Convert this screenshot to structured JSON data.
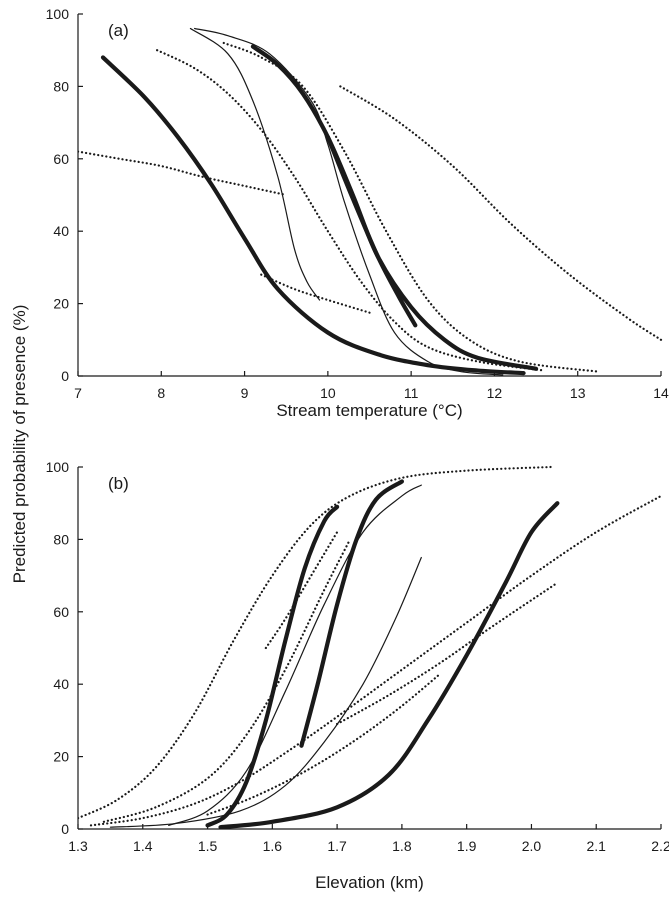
{
  "shared_ylabel": "Predicted probability of presence (%)",
  "chart_data": [
    {
      "type": "line",
      "panel_label": "(a)",
      "xlabel": "Stream temperature (°C)",
      "ylabel": "Predicted probability of presence (%)",
      "xlim": [
        7,
        14
      ],
      "ylim": [
        0,
        100
      ],
      "xticks": [
        7,
        8,
        9,
        10,
        11,
        12,
        13,
        14
      ],
      "yticks": [
        0,
        20,
        40,
        60,
        80,
        100
      ],
      "series": [
        {
          "style": "thick",
          "x": [
            7.3,
            7.8,
            8.2,
            8.6,
            9.0,
            9.4,
            10.0,
            10.6,
            11.2,
            11.8,
            12.35
          ],
          "y": [
            88,
            77,
            66,
            53,
            38,
            24,
            12,
            6,
            3,
            1.5,
            0.8
          ]
        },
        {
          "style": "thick",
          "x": [
            9.1,
            9.4,
            9.7,
            10.0,
            10.3,
            10.6,
            11.0,
            11.4,
            11.8,
            12.5
          ],
          "y": [
            91,
            86,
            78,
            66,
            50,
            33,
            19,
            10,
            5,
            2
          ]
        },
        {
          "style": "thick",
          "x": [
            10.0,
            10.3,
            10.6,
            10.85,
            11.05
          ],
          "y": [
            66,
            49,
            33,
            22,
            14
          ]
        },
        {
          "style": "thin",
          "x": [
            8.35,
            8.8,
            9.1,
            9.4,
            9.6,
            9.75,
            9.9
          ],
          "y": [
            96,
            89,
            76,
            55,
            35,
            26,
            21
          ]
        },
        {
          "style": "thin",
          "x": [
            8.4,
            8.8,
            9.3,
            9.8,
            10.0,
            10.2,
            10.5,
            10.8,
            11.2,
            11.6,
            12.1
          ],
          "y": [
            96,
            94,
            89,
            76,
            64,
            48,
            28,
            12,
            4,
            1.2,
            0.3
          ]
        },
        {
          "style": "dotted",
          "x": [
            7.0,
            7.5,
            8.0,
            8.5,
            9.0,
            9.5
          ],
          "y": [
            62,
            60,
            58,
            55,
            52.5,
            50
          ]
        },
        {
          "style": "dotted",
          "x": [
            7.95,
            8.4,
            8.8,
            9.2,
            9.6,
            10.0,
            10.4,
            10.8,
            11.2,
            11.8,
            12.6
          ],
          "y": [
            90,
            85,
            78,
            68,
            55,
            40,
            26,
            15,
            8,
            4,
            1.5
          ]
        },
        {
          "style": "dotted",
          "x": [
            8.75,
            9.2,
            9.7,
            10.2,
            10.7,
            11.2,
            11.7,
            12.3,
            13.25
          ],
          "y": [
            92,
            88,
            80,
            62,
            40,
            21,
            10,
            4,
            1.2
          ]
        },
        {
          "style": "dotted",
          "x": [
            9.2,
            9.6,
            10.0,
            10.5
          ],
          "y": [
            28,
            24,
            21,
            17.5
          ]
        },
        {
          "style": "dotted",
          "x": [
            10.15,
            10.8,
            11.5,
            12.2,
            12.9,
            13.6,
            14.0
          ],
          "y": [
            80,
            71,
            58,
            42,
            28,
            16,
            10
          ]
        }
      ]
    },
    {
      "type": "line",
      "panel_label": "(b)",
      "xlabel": "Elevation (km)",
      "ylabel": "Predicted probability of presence (%)",
      "xlim": [
        1.3,
        2.2
      ],
      "ylim": [
        0,
        100
      ],
      "xticks": [
        1.3,
        1.4,
        1.5,
        1.6,
        1.7,
        1.8,
        1.9,
        2.0,
        2.1,
        2.2
      ],
      "xtick_labels": [
        "1.3",
        "1.4",
        "1.5",
        "1.6",
        "1.7",
        "1.8",
        "1.9",
        "2.0",
        "2.1",
        "2.2"
      ],
      "yticks": [
        0,
        20,
        40,
        60,
        80,
        100
      ],
      "series": [
        {
          "style": "thick",
          "x": [
            1.5,
            1.53,
            1.56,
            1.59,
            1.62,
            1.65,
            1.68,
            1.7
          ],
          "y": [
            1,
            4,
            13,
            30,
            52,
            72,
            85,
            89
          ]
        },
        {
          "style": "thick",
          "x": [
            1.645,
            1.67,
            1.7,
            1.73,
            1.76,
            1.8
          ],
          "y": [
            23,
            40,
            62,
            80,
            91,
            96
          ]
        },
        {
          "style": "thick",
          "x": [
            1.52,
            1.6,
            1.7,
            1.78,
            1.84,
            1.9,
            1.96,
            2.0,
            2.04
          ],
          "y": [
            0.5,
            2,
            6,
            15,
            30,
            48,
            68,
            82,
            90
          ]
        },
        {
          "style": "thin",
          "x": [
            1.44,
            1.5,
            1.56,
            1.62,
            1.68,
            1.74,
            1.8,
            1.83
          ],
          "y": [
            1,
            5,
            16,
            38,
            62,
            82,
            92,
            95
          ]
        },
        {
          "style": "thin",
          "x": [
            1.35,
            1.45,
            1.55,
            1.62,
            1.68,
            1.74,
            1.79,
            1.83
          ],
          "y": [
            0.5,
            1.5,
            5,
            12,
            24,
            40,
            58,
            75
          ]
        },
        {
          "style": "dotted",
          "x": [
            1.3,
            1.36,
            1.42,
            1.48,
            1.54,
            1.6,
            1.66,
            1.72,
            1.8,
            1.9,
            2.03
          ],
          "y": [
            3,
            8,
            17,
            32,
            52,
            70,
            84,
            92,
            97,
            99,
            100
          ]
        },
        {
          "style": "dotted",
          "x": [
            1.32,
            1.4,
            1.48,
            1.55,
            1.62,
            1.7,
            1.8,
            1.9,
            2.0,
            2.1,
            2.2
          ],
          "y": [
            1,
            3,
            7,
            13,
            21,
            31,
            44,
            57,
            70,
            82,
            92
          ]
        },
        {
          "style": "dotted",
          "x": [
            1.34,
            1.42,
            1.5,
            1.56,
            1.62,
            1.68,
            1.72
          ],
          "y": [
            2,
            6,
            14,
            26,
            44,
            66,
            80
          ]
        },
        {
          "style": "dotted",
          "x": [
            1.59,
            1.62,
            1.66,
            1.7
          ],
          "y": [
            50,
            58,
            70,
            82
          ]
        },
        {
          "style": "dotted",
          "x": [
            1.5,
            1.56,
            1.62,
            1.68,
            1.74,
            1.8,
            1.86
          ],
          "y": [
            4,
            8,
            13,
            19,
            26,
            34,
            43
          ]
        },
        {
          "style": "dotted",
          "x": [
            1.7,
            1.78,
            1.86,
            1.94,
            2.04
          ],
          "y": [
            29,
            37,
            46,
            56,
            68
          ]
        }
      ]
    }
  ]
}
